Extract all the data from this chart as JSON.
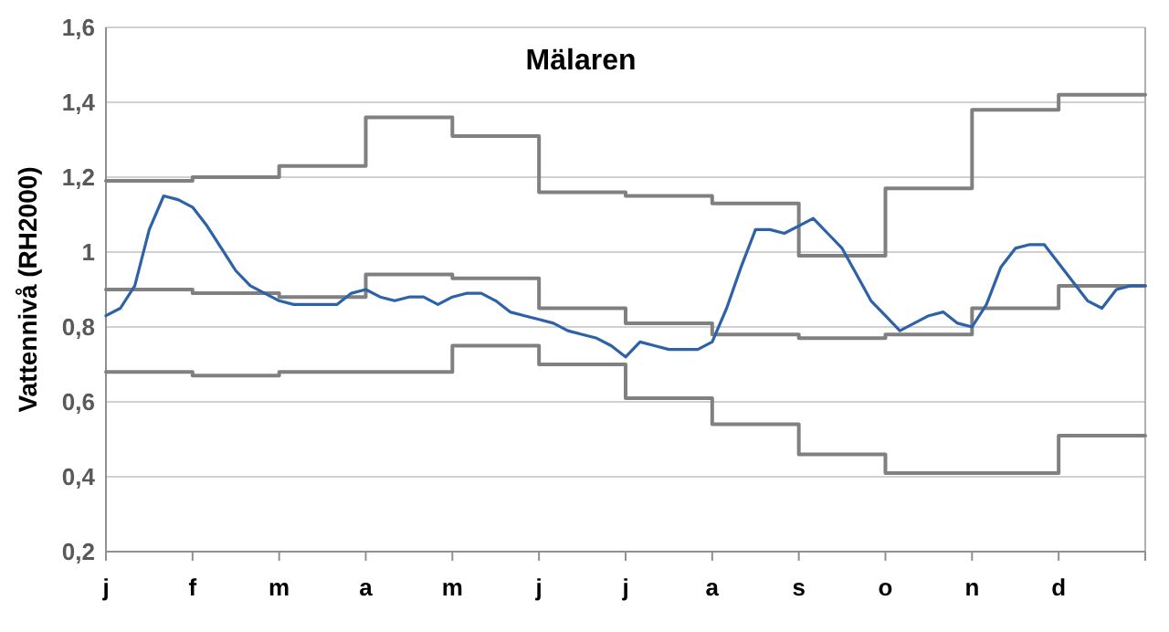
{
  "chart_data": {
    "type": "line",
    "title": "Mälaren",
    "ylabel": "Vattennivå (RH2000)",
    "categories": [
      "j",
      null,
      null,
      null,
      null,
      null,
      "f",
      null,
      null,
      null,
      null,
      null,
      "m",
      null,
      null,
      null,
      null,
      null,
      "a",
      null,
      null,
      null,
      null,
      null,
      "m",
      null,
      null,
      null,
      null,
      null,
      "j",
      null,
      null,
      null,
      null,
      null,
      "j",
      null,
      null,
      null,
      null,
      null,
      "a",
      null,
      null,
      null,
      null,
      null,
      "s",
      null,
      null,
      null,
      null,
      null,
      "o",
      null,
      null,
      null,
      null,
      null,
      "n",
      null,
      null,
      null,
      null,
      null,
      "d",
      null,
      null,
      null,
      null,
      null,
      null
    ],
    "ylim": [
      0.2,
      1.6
    ],
    "yticks": [
      {
        "value": 0.2,
        "label": "0,2"
      },
      {
        "value": 0.4,
        "label": "0,4"
      },
      {
        "value": 0.6,
        "label": "0,6"
      },
      {
        "value": 0.8,
        "label": "0,8"
      },
      1,
      {
        "value": 1.2,
        "label": "1,2"
      },
      {
        "value": 1.4,
        "label": "1,4"
      },
      {
        "value": 1.6,
        "label": "1,6"
      }
    ],
    "grid": "y",
    "marker": "none",
    "line_style": "solid",
    "series": [
      {
        "type": "step",
        "color": "#808080",
        "values": [
          1.19,
          1.19,
          1.19,
          1.19,
          1.19,
          1.19,
          1.2,
          1.2,
          1.2,
          1.2,
          1.2,
          1.2,
          1.23,
          1.23,
          1.23,
          1.23,
          1.23,
          1.23,
          1.36,
          1.36,
          1.36,
          1.36,
          1.36,
          1.36,
          1.31,
          1.31,
          1.31,
          1.31,
          1.31,
          1.31,
          1.16,
          1.16,
          1.16,
          1.16,
          1.16,
          1.16,
          1.15,
          1.15,
          1.15,
          1.15,
          1.15,
          1.15,
          1.13,
          1.13,
          1.13,
          1.13,
          1.13,
          1.13,
          0.99,
          0.99,
          0.99,
          0.99,
          0.99,
          0.99,
          1.17,
          1.17,
          1.17,
          1.17,
          1.17,
          1.17,
          1.38,
          1.38,
          1.38,
          1.38,
          1.38,
          1.38,
          1.42,
          1.42,
          1.42,
          1.42,
          1.42,
          1.42,
          1.42
        ]
      },
      {
        "type": "step",
        "color": "#808080",
        "values": [
          0.9,
          0.9,
          0.9,
          0.9,
          0.9,
          0.9,
          0.89,
          0.89,
          0.89,
          0.89,
          0.89,
          0.89,
          0.88,
          0.88,
          0.88,
          0.88,
          0.88,
          0.88,
          0.94,
          0.94,
          0.94,
          0.94,
          0.94,
          0.94,
          0.93,
          0.93,
          0.93,
          0.93,
          0.93,
          0.93,
          0.85,
          0.85,
          0.85,
          0.85,
          0.85,
          0.85,
          0.81,
          0.81,
          0.81,
          0.81,
          0.81,
          0.81,
          0.78,
          0.78,
          0.78,
          0.78,
          0.78,
          0.78,
          0.77,
          0.77,
          0.77,
          0.77,
          0.77,
          0.77,
          0.78,
          0.78,
          0.78,
          0.78,
          0.78,
          0.78,
          0.85,
          0.85,
          0.85,
          0.85,
          0.85,
          0.85,
          0.91,
          0.91,
          0.91,
          0.91,
          0.91,
          0.91,
          0.91
        ]
      },
      {
        "type": "step",
        "color": "#808080",
        "values": [
          0.68,
          0.68,
          0.68,
          0.68,
          0.68,
          0.68,
          0.67,
          0.67,
          0.67,
          0.67,
          0.67,
          0.67,
          0.68,
          0.68,
          0.68,
          0.68,
          0.68,
          0.68,
          0.68,
          0.68,
          0.68,
          0.68,
          0.68,
          0.68,
          0.75,
          0.75,
          0.75,
          0.75,
          0.75,
          0.75,
          0.7,
          0.7,
          0.7,
          0.7,
          0.7,
          0.7,
          0.61,
          0.61,
          0.61,
          0.61,
          0.61,
          0.61,
          0.54,
          0.54,
          0.54,
          0.54,
          0.54,
          0.54,
          0.46,
          0.46,
          0.46,
          0.46,
          0.46,
          0.46,
          0.41,
          0.41,
          0.41,
          0.41,
          0.41,
          0.41,
          0.41,
          0.41,
          0.41,
          0.41,
          0.41,
          0.41,
          0.51,
          0.51,
          0.51,
          0.51,
          0.51,
          0.51,
          0.51
        ]
      },
      {
        "type": "line",
        "color": "#2e62a8",
        "values": [
          0.83,
          0.85,
          0.91,
          1.06,
          1.15,
          1.14,
          1.12,
          1.07,
          1.01,
          0.95,
          0.91,
          0.89,
          0.87,
          0.86,
          0.86,
          0.86,
          0.86,
          0.89,
          0.9,
          0.88,
          0.87,
          0.88,
          0.88,
          0.86,
          0.88,
          0.89,
          0.89,
          0.87,
          0.84,
          0.83,
          0.82,
          0.81,
          0.79,
          0.78,
          0.77,
          0.75,
          0.72,
          0.76,
          0.75,
          0.74,
          0.74,
          0.74,
          0.76,
          0.85,
          0.96,
          1.06,
          1.06,
          1.05,
          1.07,
          1.09,
          1.05,
          1.01,
          0.94,
          0.87,
          0.83,
          0.79,
          0.81,
          0.83,
          0.84,
          0.81,
          0.8,
          0.86,
          0.96,
          1.01,
          1.02,
          1.02,
          0.97,
          0.92,
          0.87,
          0.85,
          0.9,
          0.91,
          0.91
        ]
      }
    ]
  }
}
